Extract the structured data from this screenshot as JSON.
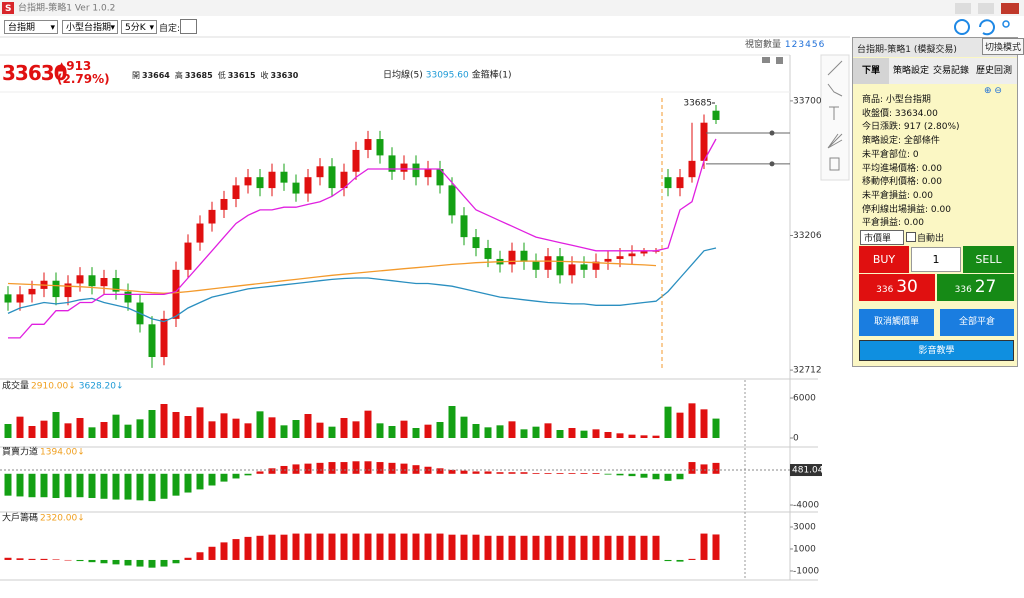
{
  "window": {
    "title": "台指期-策略1 Ver 1.0.2"
  },
  "toolbar": {
    "selects": [
      "台指期",
      "小型台指期",
      "5分K"
    ],
    "custom_label": "自定:",
    "window_count_label": "視窗數量",
    "window_counts": [
      "1",
      "2",
      "3",
      "4",
      "5",
      "6"
    ]
  },
  "quote": {
    "last": "33630",
    "change": "▲913",
    "change_pct": "(2.79%)",
    "ohlc": [
      {
        "label": "開",
        "value": "33664"
      },
      {
        "label": "高",
        "value": "33685"
      },
      {
        "label": "低",
        "value": "33615"
      },
      {
        "label": "收",
        "value": "33630"
      }
    ]
  },
  "chart_data": [
    {
      "type": "candlestick",
      "up_color": "#e01010",
      "down_color": "#14a014",
      "legend": [
        {
          "label": "日均線(5)",
          "color": "#222222"
        },
        {
          "label": "33095.60",
          "color": "#1e9ad6"
        },
        {
          "label": "金箍棒(1)",
          "color": "#222222"
        }
      ],
      "ylim": [
        32683,
        33729
      ],
      "yticks": [
        33700,
        33206,
        32712
      ],
      "high_marker": {
        "value": 33685,
        "label": "33685"
      },
      "levels": [
        33582,
        33469
      ],
      "open": [
        32990,
        32960,
        32990,
        33010,
        33040,
        32980,
        33030,
        33060,
        33020,
        33050,
        33000,
        32960,
        32880,
        32760,
        32900,
        33080,
        33180,
        33250,
        33300,
        33340,
        33390,
        33420,
        33380,
        33440,
        33400,
        33360,
        33420,
        33460,
        33380,
        33440,
        33520,
        33560,
        33500,
        33440,
        33470,
        33420,
        33450,
        33390,
        33280,
        33200,
        33160,
        33120,
        33100,
        33150,
        33110,
        33080,
        33130,
        33060,
        33100,
        33080,
        33110,
        33120,
        33130,
        33140,
        33150,
        33420,
        33380,
        33420,
        33480,
        33664
      ],
      "high": [
        33020,
        33020,
        33040,
        33070,
        33070,
        33060,
        33090,
        33090,
        33080,
        33080,
        33030,
        32990,
        32910,
        32930,
        33110,
        33210,
        33280,
        33330,
        33370,
        33420,
        33450,
        33450,
        33470,
        33470,
        33430,
        33450,
        33490,
        33490,
        33470,
        33550,
        33590,
        33590,
        33530,
        33500,
        33500,
        33480,
        33480,
        33420,
        33310,
        33230,
        33190,
        33150,
        33180,
        33180,
        33140,
        33160,
        33160,
        33130,
        33130,
        33140,
        33150,
        33160,
        33170,
        33160,
        33160,
        33450,
        33450,
        33620,
        33650,
        33685
      ],
      "low": [
        32930,
        32930,
        32960,
        32980,
        32950,
        32950,
        33000,
        32990,
        32990,
        32970,
        32930,
        32850,
        32720,
        32730,
        32870,
        33050,
        33150,
        33220,
        33270,
        33310,
        33360,
        33350,
        33350,
        33370,
        33330,
        33330,
        33390,
        33350,
        33350,
        33410,
        33490,
        33470,
        33410,
        33410,
        33390,
        33390,
        33360,
        33250,
        33170,
        33130,
        33090,
        33070,
        33070,
        33080,
        33050,
        33050,
        33030,
        33030,
        33050,
        33050,
        33080,
        33090,
        33100,
        33130,
        33140,
        33350,
        33350,
        33400,
        33450,
        33615
      ],
      "close": [
        32960,
        32990,
        33010,
        33040,
        32980,
        33030,
        33060,
        33020,
        33050,
        33000,
        32960,
        32880,
        32760,
        32900,
        33080,
        33180,
        33250,
        33300,
        33340,
        33390,
        33420,
        33380,
        33440,
        33400,
        33360,
        33420,
        33460,
        33380,
        33440,
        33520,
        33560,
        33500,
        33440,
        33470,
        33420,
        33450,
        33390,
        33280,
        33200,
        33160,
        33120,
        33100,
        33150,
        33110,
        33080,
        33130,
        33060,
        33100,
        33080,
        33110,
        33120,
        33130,
        33140,
        33150,
        33150,
        33380,
        33420,
        33480,
        33620,
        33630
      ],
      "series": [
        {
          "color": "#f39a2c",
          "values": [
            33030,
            33028,
            33026,
            33024,
            33022,
            33020,
            33018,
            33015,
            33012,
            33008,
            33004,
            33000,
            32996,
            32994,
            32996,
            33000,
            33005,
            33010,
            33015,
            33020,
            33025,
            33030,
            33035,
            33040,
            33045,
            33050,
            33055,
            33060,
            33064,
            33068,
            33072,
            33076,
            33080,
            33084,
            33088,
            33092,
            33096,
            33100,
            33103,
            33106,
            33108,
            33110,
            33111,
            33112,
            33112,
            33112,
            33111,
            33110,
            33108,
            33106,
            33104,
            33102,
            33100,
            33098,
            33095.6,
            null,
            null,
            null,
            null,
            null
          ]
        },
        {
          "color": "#2a8fc0",
          "values": [
            32920,
            32940,
            32950,
            32960,
            32955,
            32960,
            32970,
            32975,
            32960,
            32950,
            32940,
            32920,
            32900,
            32890,
            32910,
            32940,
            32960,
            32980,
            32990,
            33000,
            33010,
            33015,
            33020,
            33025,
            33030,
            33035,
            33040,
            33045,
            33048,
            33050,
            33050,
            33045,
            33040,
            33035,
            33030,
            33030,
            33025,
            33020,
            33010,
            33000,
            32990,
            32980,
            32975,
            32970,
            32965,
            32960,
            32958,
            32955,
            32955,
            32950,
            32950,
            32950,
            32955,
            32960,
            32965,
            33000,
            33050,
            33100,
            33150,
            33160
          ]
        },
        {
          "color": "#e020e0",
          "values": [
            32830,
            32830,
            32880,
            32880,
            32930,
            32930,
            32960,
            32960,
            32990,
            32990,
            32990,
            32990,
            32990,
            32990,
            33000,
            33050,
            33100,
            33150,
            33200,
            33250,
            33280,
            33300,
            33300,
            33310,
            33310,
            33320,
            33330,
            33350,
            33380,
            33420,
            33450,
            33450,
            33450,
            33450,
            33450,
            33450,
            33450,
            33400,
            33350,
            33300,
            33280,
            33260,
            33240,
            33220,
            33200,
            33190,
            33180,
            33170,
            33160,
            33150,
            33150,
            33150,
            33150,
            33150,
            33150,
            33160,
            33300,
            33330,
            33480,
            33560
          ]
        }
      ]
    },
    {
      "type": "bar",
      "title": "成交量",
      "color_by": "price",
      "legend": [
        {
          "label": "2910.00↓",
          "color": "#f0a020"
        },
        {
          "label": "3628.20↓",
          "color": "#1e9ad6"
        }
      ],
      "ylim": [
        -1050,
        6750
      ],
      "yticks": [
        6000,
        0
      ],
      "values": [
        2100,
        3200,
        1800,
        2600,
        3900,
        2200,
        3000,
        1600,
        2400,
        3500,
        2000,
        2800,
        4200,
        5100,
        3900,
        3300,
        4600,
        2500,
        3700,
        2900,
        2200,
        4000,
        3100,
        1900,
        2700,
        3600,
        2300,
        1700,
        3000,
        2500,
        4100,
        2200,
        1800,
        2600,
        1500,
        2000,
        2400,
        4800,
        3200,
        2100,
        1600,
        1900,
        2500,
        1300,
        1700,
        2200,
        1200,
        1500,
        1100,
        1300,
        900,
        700,
        500,
        400,
        350,
        4700,
        3800,
        5200,
        4300,
        2910
      ]
    },
    {
      "type": "bar",
      "title": "買賣力道",
      "color_by": "sign",
      "legend": [
        {
          "label": "1394.00↓",
          "color": "#f0a020"
        }
      ],
      "ylim": [
        -4380,
        2020
      ],
      "yticks": [
        -4000
      ],
      "reference": {
        "value": 481.04,
        "label": "481.04"
      },
      "values": [
        -2800,
        -2900,
        -3000,
        -3000,
        -3100,
        -3000,
        -3000,
        -3100,
        -3200,
        -3300,
        -3300,
        -3400,
        -3500,
        -3200,
        -2800,
        -2400,
        -2000,
        -1500,
        -1000,
        -600,
        -200,
        300,
        700,
        1000,
        1200,
        1300,
        1400,
        1500,
        1500,
        1600,
        1600,
        1500,
        1400,
        1300,
        1100,
        900,
        700,
        500,
        400,
        300,
        300,
        200,
        200,
        200,
        100,
        100,
        100,
        100,
        100,
        100,
        -100,
        -200,
        -300,
        -500,
        -700,
        -900,
        -700,
        1500,
        1200,
        1394
      ]
    },
    {
      "type": "bar",
      "title": "大戶籌碼",
      "color_by": "sign",
      "legend": [
        {
          "label": "2320.00↓",
          "color": "#f0a020"
        }
      ],
      "ylim": [
        -1640,
        4090
      ],
      "yticks": [
        3000,
        1000,
        -1000
      ],
      "values": [
        200,
        150,
        100,
        100,
        50,
        0,
        -100,
        -200,
        -300,
        -400,
        -500,
        -600,
        -700,
        -600,
        -300,
        200,
        700,
        1200,
        1600,
        1900,
        2100,
        2200,
        2300,
        2300,
        2400,
        2400,
        2400,
        2400,
        2400,
        2400,
        2400,
        2400,
        2400,
        2400,
        2400,
        2400,
        2400,
        2300,
        2300,
        2300,
        2200,
        2200,
        2200,
        2200,
        2200,
        2200,
        2200,
        2200,
        2200,
        2200,
        2200,
        2200,
        2200,
        2200,
        2200,
        -100,
        -150,
        100,
        2400,
        2320
      ]
    }
  ],
  "panel": {
    "title": "台指期-策略1 (模擬交易)",
    "mode_button": "切換模式",
    "tabs": [
      "下單",
      "策略設定",
      "交易記錄",
      "歷史回測"
    ],
    "info": [
      "商品: 小型台指期",
      "收盤價: 33634.00",
      "今日漲跌: 917 (2.80%)",
      "策略設定: 全部條件",
      "未平倉部位: 0",
      "平均進場價格: 0.00",
      "移動停利價格: 0.00",
      "未平倉損益: 0.00",
      "停利線出場損益: 0.00",
      "平倉損益: 0.00"
    ],
    "order_type": "市價單",
    "auto_exit": "自動出",
    "buy": "BUY",
    "qty": "1",
    "sell": "SELL",
    "bid": {
      "prefix": "336",
      "main": "30"
    },
    "ask": {
      "prefix": "336",
      "main": "27"
    },
    "cancel_button": "取消觸價單",
    "close_all_button": "全部平倉",
    "video_button": "影音教學"
  }
}
